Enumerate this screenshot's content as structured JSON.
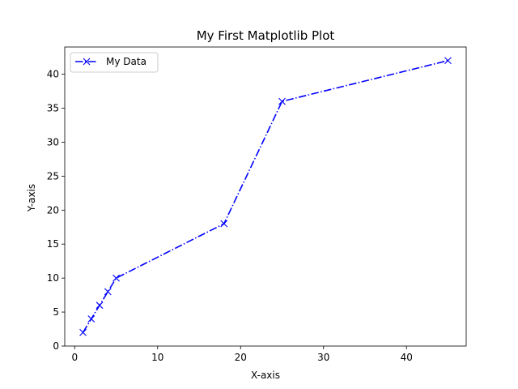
{
  "chart_data": {
    "type": "line",
    "title": "My First Matplotlib Plot",
    "xlabel": "X-axis",
    "ylabel": "Y-axis",
    "xlim": [
      -1.2,
      47.2
    ],
    "ylim": [
      0,
      44
    ],
    "xticks": [
      0,
      10,
      20,
      30,
      40
    ],
    "xtick_labels": [
      "0",
      "10",
      "20",
      "30",
      "40"
    ],
    "yticks": [
      0,
      5,
      10,
      15,
      20,
      25,
      30,
      35,
      40
    ],
    "ytick_labels": [
      "0",
      "5",
      "10",
      "15",
      "20",
      "25",
      "30",
      "35",
      "40"
    ],
    "grid": false,
    "legend_position": "upper-left",
    "series": [
      {
        "name": "My Data",
        "color": "#0000ff",
        "linestyle": "dash-dot",
        "marker": "x",
        "x": [
          1,
          2,
          3,
          4,
          5,
          18,
          25,
          45
        ],
        "y": [
          2,
          4,
          6,
          8,
          10,
          18,
          36,
          42
        ]
      }
    ]
  }
}
